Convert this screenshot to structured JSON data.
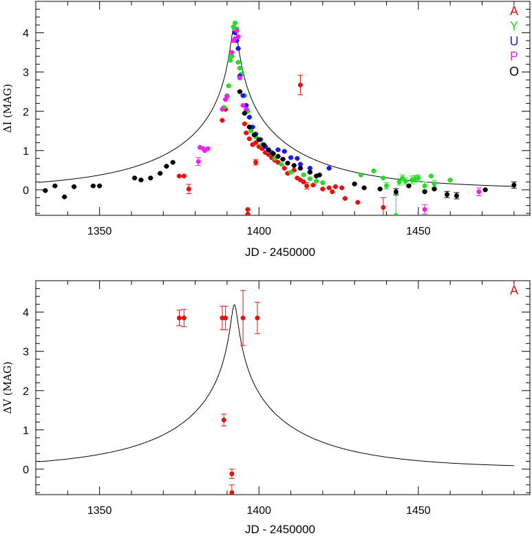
{
  "chart_data": [
    {
      "type": "scatter",
      "xlabel": "JD - 2450000",
      "ylabel": "ΔI (MAG)",
      "xlim": [
        1330,
        1485
      ],
      "ylim": [
        -0.65,
        4.8
      ],
      "xticks": [
        1350,
        1400,
        1450
      ],
      "yticks": [
        0,
        1,
        2,
        3,
        4
      ],
      "legend_position": "top-right",
      "legend": [
        {
          "label": "A",
          "color": "#e8100f"
        },
        {
          "label": "Y",
          "color": "#22dd22"
        },
        {
          "label": "U",
          "color": "#1a1aee"
        },
        {
          "label": "P",
          "color": "#ee22ee"
        },
        {
          "label": "O",
          "color": "#000000"
        }
      ],
      "model_curve": {
        "t0": 1392.3,
        "u0": 0.0215,
        "tE": 45,
        "baseline": 0.02
      },
      "series": [
        {
          "name": "A",
          "color": "#e8100f",
          "points": [
            [
              1375,
              0.35,
              0.04
            ],
            [
              1376.5,
              0.35,
              0.04
            ],
            [
              1378,
              0.02,
              0.12
            ],
            [
              1388.5,
              1.77,
              0.04
            ],
            [
              1389.5,
              2.05,
              0.05
            ],
            [
              1395.5,
              1.68,
              0.04
            ],
            [
              1396,
              1.45,
              0.04
            ],
            [
              1397,
              1.3,
              0.04
            ],
            [
              1398,
              1.15,
              0.04
            ],
            [
              1399,
              1.2,
              0.04
            ],
            [
              1399,
              0.7,
              0.07
            ],
            [
              1400,
              1.1,
              0.04
            ],
            [
              1401,
              1.05,
              0.04
            ],
            [
              1402,
              0.95,
              0.04
            ],
            [
              1403,
              0.9,
              0.04
            ],
            [
              1404,
              0.82,
              0.04
            ],
            [
              1405,
              0.75,
              0.04
            ],
            [
              1406,
              0.7,
              0.04
            ],
            [
              1408,
              0.55,
              0.04
            ],
            [
              1409,
              0.42,
              0.05
            ],
            [
              1396.5,
              -0.5,
              0.06
            ],
            [
              1396.5,
              -0.62,
              0.06
            ],
            [
              1413,
              2.67,
              0.25
            ],
            [
              1411,
              0.5,
              0.05
            ],
            [
              1412,
              0.3,
              0.05
            ],
            [
              1413,
              0.25,
              0.05
            ],
            [
              1414,
              0.2,
              0.05
            ],
            [
              1415,
              0.1,
              0.08
            ],
            [
              1417,
              0.12,
              0.05
            ],
            [
              1420,
              0.02,
              0.05
            ],
            [
              1422,
              0.05,
              0.05
            ],
            [
              1423,
              -0.05,
              0.05
            ],
            [
              1424,
              0.08,
              0.05
            ],
            [
              1426,
              0.05,
              0.05
            ],
            [
              1427,
              -0.22,
              0.05
            ],
            [
              1431,
              -0.32,
              0.05
            ],
            [
              1439,
              -0.45,
              0.25
            ]
          ]
        },
        {
          "name": "Y",
          "color": "#22dd22",
          "points": [
            [
              1389,
              2.1,
              0.05
            ],
            [
              1390,
              2.4,
              0.05
            ],
            [
              1390.5,
              2.65,
              0.05
            ],
            [
              1391,
              3.3,
              0.05
            ],
            [
              1391.5,
              3.4,
              0.05
            ],
            [
              1392,
              4.15,
              0.05
            ],
            [
              1392.5,
              4.25,
              0.05
            ],
            [
              1393,
              4.1,
              0.05
            ],
            [
              1393.5,
              3.25,
              0.05
            ],
            [
              1394,
              3.1,
              0.05
            ],
            [
              1394.5,
              2.95,
              0.05
            ],
            [
              1395.5,
              2.4,
              0.05
            ],
            [
              1396.5,
              2.0,
              0.05
            ],
            [
              1397.5,
              1.5,
              0.05
            ],
            [
              1399,
              1.35,
              0.05
            ],
            [
              1401,
              1.15,
              0.05
            ],
            [
              1403,
              1.0,
              0.05
            ],
            [
              1405,
              0.8,
              0.05
            ],
            [
              1407,
              0.65,
              0.05
            ],
            [
              1410,
              0.45,
              0.05
            ],
            [
              1414,
              0.38,
              0.05
            ],
            [
              1416,
              0.28,
              0.05
            ],
            [
              1418,
              0.22,
              0.05
            ],
            [
              1420,
              0.18,
              0.05
            ],
            [
              1432,
              0.38,
              0.05
            ],
            [
              1436,
              0.48,
              0.05
            ],
            [
              1439,
              0.3,
              0.05
            ],
            [
              1440,
              0.1,
              0.08
            ],
            [
              1443,
              -0.65,
              0.55
            ],
            [
              1444,
              0.2,
              0.08
            ],
            [
              1445,
              0.3,
              0.08
            ],
            [
              1446,
              0.22,
              0.08
            ],
            [
              1448,
              0.25,
              0.1
            ],
            [
              1449,
              0.28,
              0.08
            ],
            [
              1450,
              0.3,
              0.08
            ],
            [
              1452,
              0.1,
              0.1
            ],
            [
              1454,
              0.35,
              0.05
            ],
            [
              1455,
              0.15,
              0.08
            ],
            [
              1460,
              0.25,
              0.05
            ]
          ]
        },
        {
          "name": "U",
          "color": "#1a1aee",
          "points": [
            [
              1392.5,
              4.0,
              0.05
            ],
            [
              1393,
              3.8,
              0.05
            ],
            [
              1393.5,
              3.6,
              0.05
            ],
            [
              1394,
              2.9,
              0.05
            ],
            [
              1395,
              2.4,
              0.05
            ],
            [
              1396,
              2.15,
              0.05
            ],
            [
              1397,
              1.85,
              0.05
            ],
            [
              1398,
              1.6,
              0.05
            ],
            [
              1399,
              1.42,
              0.05
            ],
            [
              1400.5,
              1.28,
              0.05
            ],
            [
              1402,
              1.1,
              0.05
            ],
            [
              1404,
              0.95,
              0.05
            ],
            [
              1406,
              1.02,
              0.05
            ],
            [
              1408,
              0.98,
              0.05
            ],
            [
              1410,
              0.82,
              0.05
            ],
            [
              1412,
              0.8,
              0.05
            ],
            [
              1413,
              0.65,
              0.05
            ],
            [
              1416,
              0.55,
              0.05
            ],
            [
              1422,
              0.55,
              0.05
            ]
          ]
        },
        {
          "name": "P",
          "color": "#ee22ee",
          "points": [
            [
              1381,
              0.72,
              0.1
            ],
            [
              1381.5,
              1.08,
              0.05
            ],
            [
              1382.5,
              1.05,
              0.05
            ],
            [
              1383,
              1.0,
              0.05
            ],
            [
              1384,
              1.05,
              0.05
            ],
            [
              1388.5,
              2.05,
              0.05
            ],
            [
              1389.5,
              2.3,
              0.05
            ],
            [
              1390,
              2.38,
              0.05
            ],
            [
              1391.5,
              3.5,
              0.05
            ],
            [
              1392,
              3.8,
              0.05
            ],
            [
              1392.5,
              3.85,
              0.05
            ],
            [
              1393,
              4.05,
              0.05
            ],
            [
              1393.5,
              3.9,
              0.05
            ],
            [
              1394,
              2.85,
              0.05
            ],
            [
              1395,
              2.15,
              0.05
            ],
            [
              1396,
              2.05,
              0.05
            ],
            [
              1452,
              -0.5,
              0.12
            ],
            [
              1469,
              -0.05,
              0.1
            ]
          ]
        },
        {
          "name": "O",
          "color": "#000000",
          "points": [
            [
              1333,
              -0.02,
              0.05
            ],
            [
              1336,
              0.1,
              0.05
            ],
            [
              1339,
              -0.18,
              0.05
            ],
            [
              1342,
              0.08,
              0.05
            ],
            [
              1348,
              0.1,
              0.04
            ],
            [
              1350,
              0.1,
              0.04
            ],
            [
              1361,
              0.3,
              0.04
            ],
            [
              1363,
              0.25,
              0.04
            ],
            [
              1366,
              0.3,
              0.04
            ],
            [
              1369,
              0.42,
              0.05
            ],
            [
              1371,
              0.6,
              0.05
            ],
            [
              1373,
              0.7,
              0.05
            ],
            [
              1394,
              2.5,
              0.05
            ],
            [
              1395.5,
              1.95,
              0.05
            ],
            [
              1397,
              1.6,
              0.05
            ],
            [
              1398.5,
              1.4,
              0.05
            ],
            [
              1400,
              1.28,
              0.05
            ],
            [
              1401.5,
              1.15,
              0.05
            ],
            [
              1403,
              1.02,
              0.05
            ],
            [
              1404.5,
              0.92,
              0.05
            ],
            [
              1406,
              0.85,
              0.05
            ],
            [
              1407.5,
              0.78,
              0.05
            ],
            [
              1409,
              0.68,
              0.05
            ],
            [
              1411,
              0.62,
              0.05
            ],
            [
              1413,
              0.55,
              0.05
            ],
            [
              1416,
              0.45,
              0.05
            ],
            [
              1418,
              0.35,
              0.05
            ],
            [
              1419,
              0.38,
              0.05
            ],
            [
              1430,
              0.15,
              0.05
            ],
            [
              1433,
              0.05,
              0.05
            ],
            [
              1438,
              0.02,
              0.05
            ],
            [
              1443,
              -0.05,
              0.08
            ],
            [
              1447,
              0.1,
              0.05
            ],
            [
              1452,
              -0.05,
              0.05
            ],
            [
              1455,
              0.02,
              0.05
            ],
            [
              1459,
              -0.12,
              0.08
            ],
            [
              1462,
              -0.15,
              0.08
            ],
            [
              1471,
              0.0,
              0.05
            ],
            [
              1480,
              0.12,
              0.08
            ]
          ]
        }
      ]
    },
    {
      "type": "scatter",
      "xlabel": "JD - 2450000",
      "ylabel": "ΔV (MAG)",
      "xlim": [
        1330,
        1485
      ],
      "ylim": [
        -0.65,
        4.8
      ],
      "xticks": [
        1350,
        1400,
        1450
      ],
      "yticks": [
        0,
        1,
        2,
        3,
        4
      ],
      "legend_position": "top-right",
      "legend": [
        {
          "label": "A",
          "color": "#e8100f"
        }
      ],
      "model_curve": {
        "t0": 1392.3,
        "u0": 0.0215,
        "tE": 45,
        "baseline": 0.02
      },
      "series": [
        {
          "name": "A",
          "color": "#e8100f",
          "points": [
            [
              1375,
              3.85,
              0.2
            ],
            [
              1376.5,
              3.85,
              0.22
            ],
            [
              1388.5,
              3.85,
              0.3
            ],
            [
              1389,
              1.25,
              0.15
            ],
            [
              1389.5,
              3.85,
              0.3
            ],
            [
              1391.5,
              -0.12,
              0.12
            ],
            [
              1391.5,
              -0.6,
              0.2
            ],
            [
              1395,
              3.85,
              0.7
            ],
            [
              1399.5,
              3.85,
              0.4
            ]
          ]
        }
      ]
    }
  ]
}
